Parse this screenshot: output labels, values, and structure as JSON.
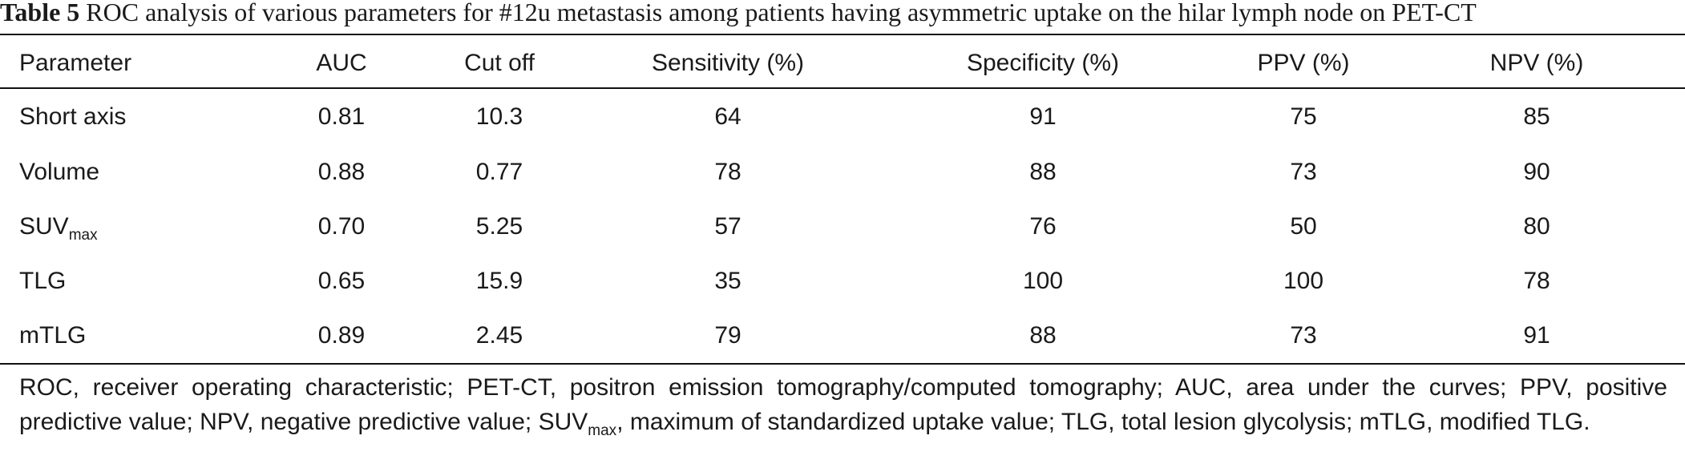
{
  "caption": {
    "label": "Table 5",
    "text": "ROC analysis of various parameters for #12u metastasis among patients having asymmetric uptake on the hilar lymph node on PET-CT"
  },
  "table": {
    "headers": [
      "Parameter",
      "AUC",
      "Cut off",
      "Sensitivity (%)",
      "Specificity (%)",
      "PPV (%)",
      "NPV (%)"
    ],
    "rows": [
      {
        "param": "Short axis",
        "param_sub": "",
        "values": [
          "0.81",
          "10.3",
          "64",
          "91",
          "75",
          "85"
        ]
      },
      {
        "param": "Volume",
        "param_sub": "",
        "values": [
          "0.88",
          "0.77",
          "78",
          "88",
          "73",
          "90"
        ]
      },
      {
        "param": "SUV",
        "param_sub": "max",
        "values": [
          "0.70",
          "5.25",
          "57",
          "76",
          "50",
          "80"
        ]
      },
      {
        "param": "TLG",
        "param_sub": "",
        "values": [
          "0.65",
          "15.9",
          "35",
          "100",
          "100",
          "78"
        ]
      },
      {
        "param": "mTLG",
        "param_sub": "",
        "values": [
          "0.89",
          "2.45",
          "79",
          "88",
          "73",
          "91"
        ]
      }
    ]
  },
  "footnote": {
    "part1": "ROC, receiver operating characteristic; PET-CT, positron emission tomography/computed tomography; AUC, area under the curves; PPV, positive predictive value; NPV, negative predictive value; SUV",
    "sub": "max",
    "part2": ", maximum of standardized uptake value; TLG, total lesion glycolysis; mTLG, modified TLG."
  }
}
